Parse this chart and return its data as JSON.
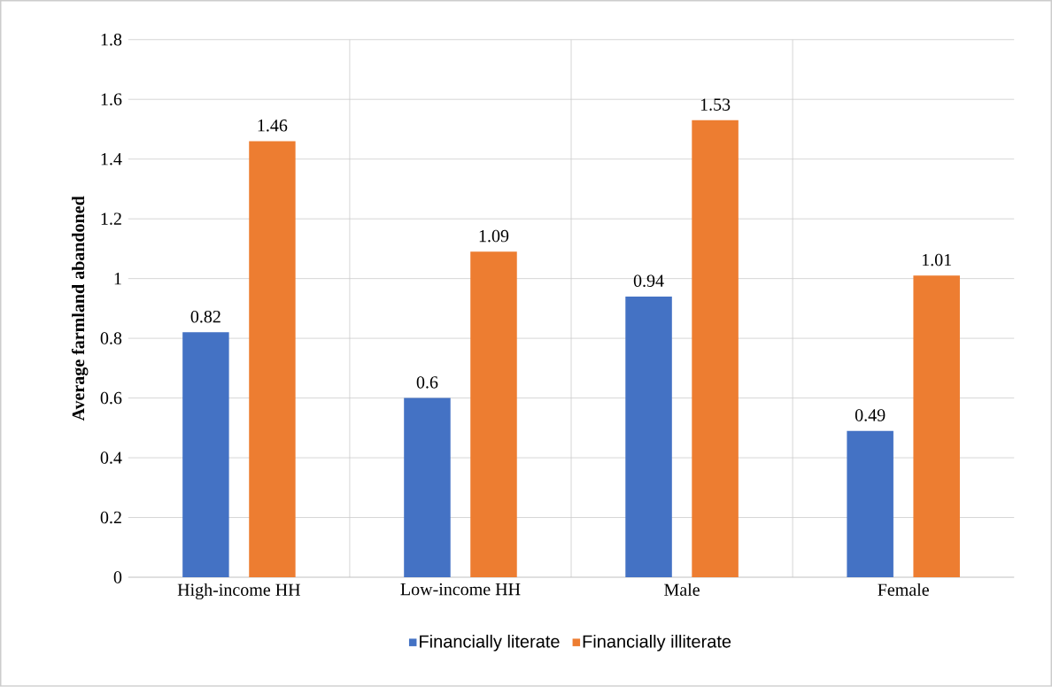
{
  "chart_data": {
    "type": "bar",
    "ylabel": "Average farmland abandoned",
    "categories": [
      "High-income HH",
      "Low-income HH",
      "Male",
      "Female"
    ],
    "series": [
      {
        "name": "Financially literate",
        "color": "#4472c4",
        "values": [
          0.82,
          0.6,
          0.94,
          0.49
        ]
      },
      {
        "name": "Financially illiterate",
        "color": "#ed7d31",
        "values": [
          1.46,
          1.09,
          1.53,
          1.01
        ]
      }
    ],
    "ylim": [
      0,
      1.8
    ],
    "yticks": [
      0,
      0.2,
      0.4,
      0.6,
      0.8,
      1,
      1.2,
      1.4,
      1.6,
      1.8
    ],
    "grid": true,
    "legend": "bottom",
    "data_labels": true
  }
}
